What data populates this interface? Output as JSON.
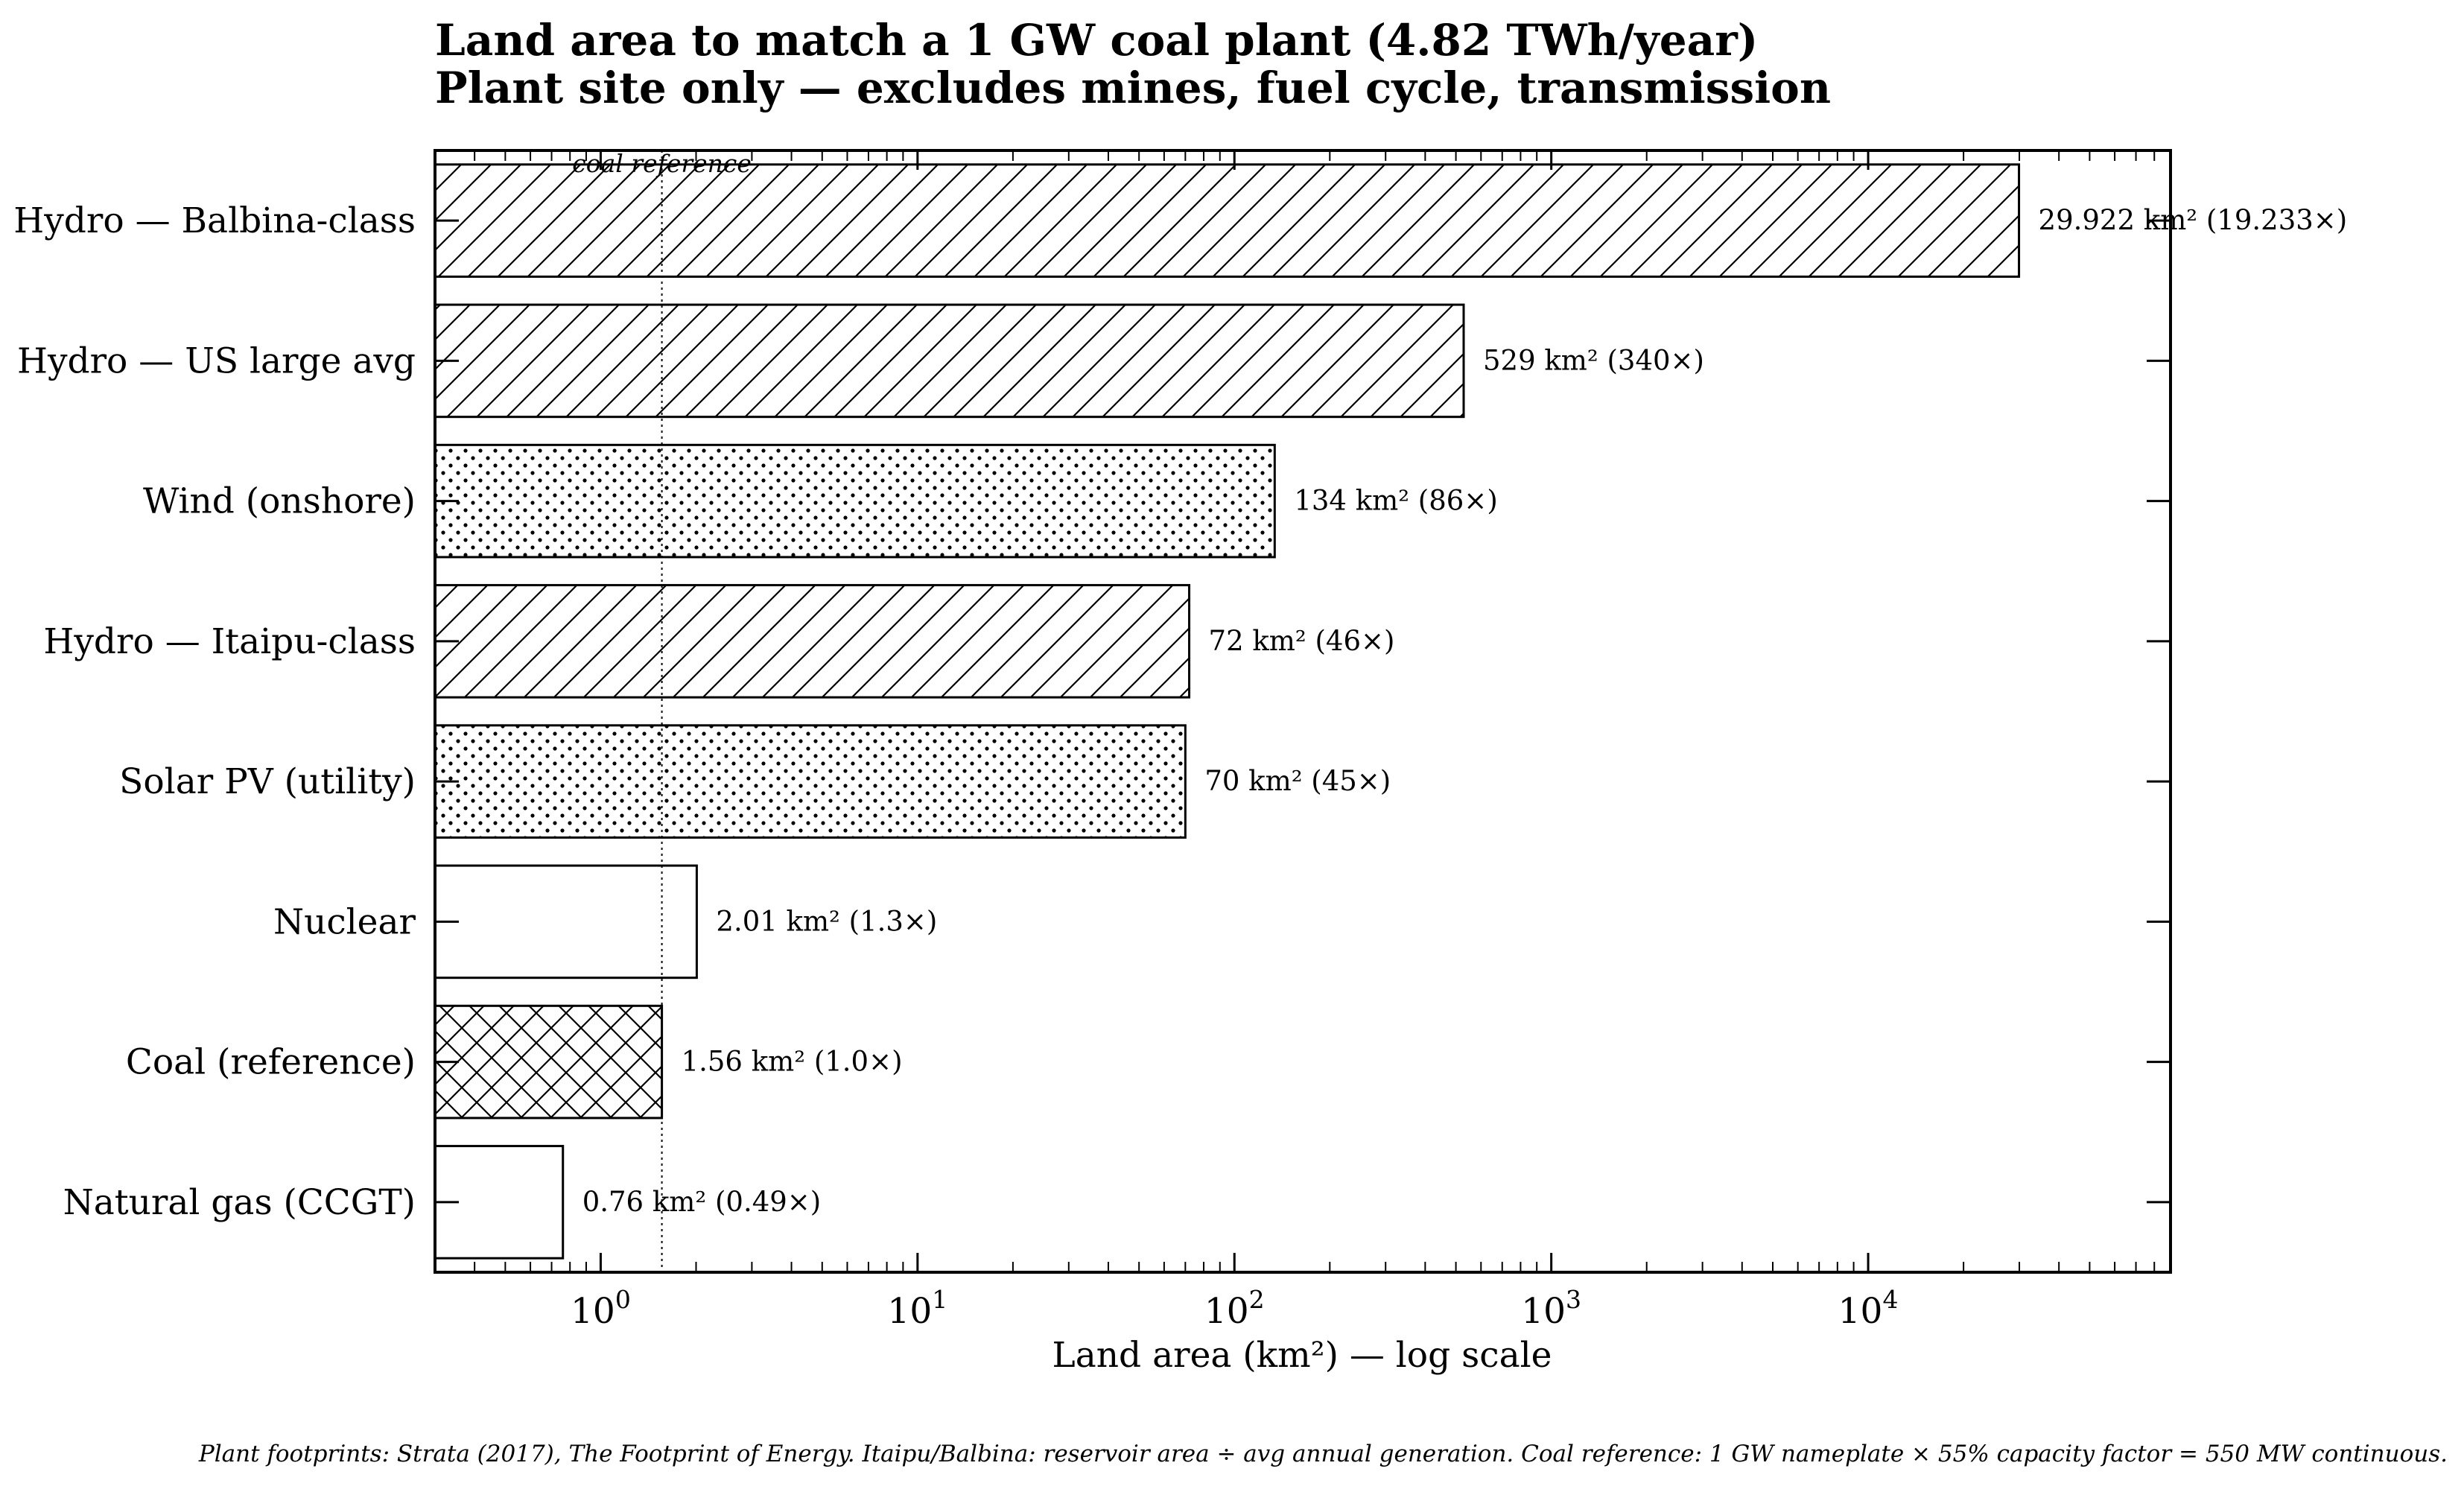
{
  "chart_data": {
    "type": "bar",
    "orientation": "horizontal",
    "title": "Land area to match a 1 GW coal plant (4.82 TWh/year)",
    "subtitle": "Plant site only — excludes mines, fuel cycle, transmission",
    "xlabel": "Land area (km²) — log scale",
    "ylabel": "",
    "xscale": "log",
    "xlim": [
      0.3,
      90000
    ],
    "grid": false,
    "legend": "none",
    "x_tick_labels": [
      {
        "base": "10",
        "exp": "0",
        "value": 1
      },
      {
        "base": "10",
        "exp": "1",
        "value": 10
      },
      {
        "base": "10",
        "exp": "2",
        "value": 100
      },
      {
        "base": "10",
        "exp": "3",
        "value": 1000
      },
      {
        "base": "10",
        "exp": "4",
        "value": 10000
      }
    ],
    "categories": [
      "Hydro — Balbina-class",
      "Hydro — US large avg",
      "Wind (onshore)",
      "Hydro — Itaipu-class",
      "Solar PV (utility)",
      "Nuclear",
      "Coal (reference)",
      "Natural gas (CCGT)"
    ],
    "values": [
      29922,
      529,
      134,
      72,
      70,
      2.01,
      1.56,
      0.76
    ],
    "patterns": [
      "diagonal",
      "diagonal",
      "dots",
      "diagonal",
      "dots",
      "none",
      "crosshatch",
      "none"
    ],
    "data_labels": [
      "29.922 km²   (19.233×)",
      "529 km²   (340×)",
      "134 km²   (86×)",
      "72 km²   (46×)",
      "70 km²   (45×)",
      "2.01 km²   (1.3×)",
      "1.56 km²   (1.0×)",
      "0.76 km²   (0.49×)"
    ],
    "reference_line": {
      "value": 1.56,
      "label": "coal reference"
    }
  },
  "caption": "Plant footprints: Strata (2017), The Footprint of Energy. Itaipu/Balbina: reservoir area ÷ avg annual generation. Coal reference: 1 GW nameplate × 55% capacity factor = 550 MW continuous.",
  "colors": {
    "bar_fill": "#ffffff",
    "bar_edge": "#000000",
    "hatch": "#000000"
  }
}
